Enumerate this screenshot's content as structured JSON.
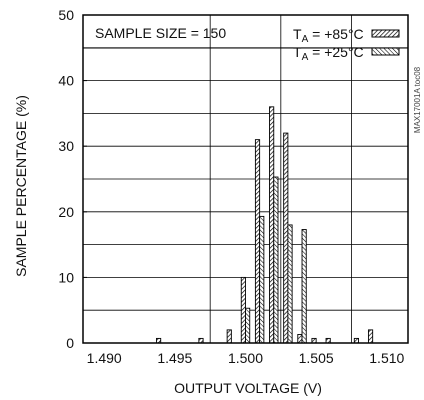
{
  "chart_data": {
    "type": "bar",
    "title": "",
    "xlabel": "OUTPUT VOLTAGE (V)",
    "ylabel": "SAMPLE PERCENTAGE (%)",
    "xlim": [
      1.4885,
      1.5115
    ],
    "ylim": [
      0,
      50
    ],
    "x_ticks": [
      "1.490",
      "1.495",
      "1.500",
      "1.505",
      "1.510"
    ],
    "x_tick_values": [
      1.49,
      1.495,
      1.5,
      1.505,
      1.51
    ],
    "y_ticks": [
      0,
      10,
      20,
      30,
      40,
      50
    ],
    "grid": true,
    "bar_width": 0.0003,
    "annotation": "SAMPLE SIZE = 150",
    "figure_id": "MAX17001A toc08",
    "legend_position": "top-right",
    "series": [
      {
        "name_main": "T",
        "name_sub": "A",
        "name_rest": " = +85°C",
        "pattern": "hatch-85",
        "x": [
          1.494,
          1.497,
          1.499,
          1.5,
          1.501,
          1.502,
          1.503,
          1.504,
          1.505,
          1.506,
          1.508,
          1.509
        ],
        "values": [
          0.7,
          0.7,
          2.0,
          10.0,
          31.0,
          36.0,
          32.0,
          1.3,
          0.7,
          0.7,
          0.7,
          2.0
        ]
      },
      {
        "name_main": "T",
        "name_sub": "A",
        "name_rest": " = +25°C",
        "pattern": "hatch-25",
        "x": [
          1.5,
          1.501,
          1.502,
          1.503,
          1.504
        ],
        "values": [
          5.3,
          19.3,
          25.3,
          18.0,
          17.3
        ]
      }
    ]
  }
}
